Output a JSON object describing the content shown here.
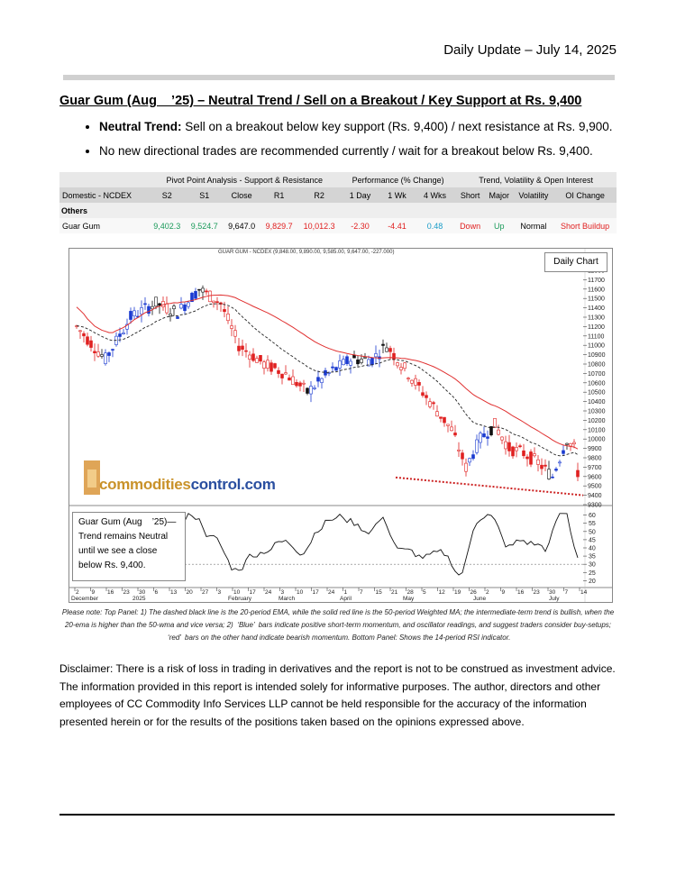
{
  "header": {
    "date_line": "Daily Update – July 14, 2025"
  },
  "title": "Guar Gum (Aug    ’25) – Neutral Trend / Sell on a Breakout / Key Support at Rs. 9,400",
  "bullets": [
    {
      "bold": "Neutral Trend:",
      "text": " Sell on a breakout below key support (Rs. 9,400) / next resistance at Rs. 9,900."
    },
    {
      "bold": "",
      "text": "No new directional trades are recommended currently / wait for a breakout below Rs. 9,400."
    }
  ],
  "table": {
    "groups": [
      "Pivot Point Analysis - Support & Resistance",
      "Performance (% Change)",
      "Trend, Volatility & Open Interest"
    ],
    "columns": [
      "Domestic - NCDEX",
      "S2",
      "S1",
      "Close",
      "R1",
      "R2",
      "1 Day",
      "1 Wk",
      "4 Wks",
      "Short",
      "Major",
      "Volatility",
      "OI Change"
    ],
    "section": "Others",
    "row": [
      "Guar Gum",
      "9,402.3",
      "9,524.7",
      "9,647.0",
      "9,829.7",
      "10,012.3",
      "-2.30",
      "-4.41",
      "0.48",
      "Down",
      "Up",
      "Normal",
      "Short Buildup"
    ]
  },
  "chart": {
    "title": "GUAR GUM - NCDEX (9,848.00, 9,890.00, 9,585.00, 9,647.00, -227.000)",
    "legend": "Daily Chart",
    "logo_part1": "commodities",
    "logo_part2": "control.com",
    "price_ticks": [
      "11800",
      "11700",
      "11600",
      "11500",
      "11400",
      "11300",
      "11200",
      "11100",
      "11000",
      "10900",
      "10800",
      "10700",
      "10600",
      "10500",
      "10400",
      "10300",
      "10200",
      "10100",
      "10000",
      "9900",
      "9800",
      "9700",
      "9600",
      "9500",
      "9400",
      "9300"
    ],
    "rsi_ticks": [
      "60",
      "55",
      "50",
      "45",
      "40",
      "35",
      "30",
      "25",
      "20"
    ],
    "month_labels": [
      "December",
      "2025",
      "February",
      "March",
      "April",
      "May",
      "June",
      "July"
    ],
    "day_labels": [
      "2",
      "9",
      "16",
      "23",
      "30",
      "6",
      "13",
      "20",
      "27",
      "3",
      "10",
      "17",
      "24",
      "3",
      "10",
      "17",
      "24",
      "1",
      "7",
      "15",
      "21",
      "28",
      "5",
      "12",
      "19",
      "26",
      "2",
      "9",
      "16",
      "23",
      "30",
      "7",
      "14"
    ],
    "colors": {
      "ema_dashed": "#222222",
      "wma_red": "#e03030",
      "bull_blue": "#1a3ad0",
      "bear_red": "#e02020",
      "neutral": "#111111",
      "support_line": "#cc2020"
    }
  },
  "panel_note": {
    "line1": "Guar Gum (Aug    ’25)—",
    "line2": "Trend remains Neutral",
    "line3": "until we see a close",
    "line4": "below Rs. 9,400."
  },
  "note": "Please note: Top Panel: 1) The dashed black line is the 20-period EMA, while the solid red line is the 50-period Weighted MA; the intermediate-term trend is bullish, when the 20-ema is higher than the 50-wma and vice versa; 2)  ‘Blue’  bars indicate positive short-term momentum, and oscillator readings, and suggest traders consider buy-setups;  ‘red’  bars on the other hand indicate bearish momentum. Bottom Panel: Shows the 14-period RSI indicator.",
  "disclaimer": "Disclaimer: There is a risk of loss in trading in derivatives and the report is not to be construed as investment advice. The information provided in this report is intended solely for informative purposes. The author, directors and other employees of CC Commodity Info Services LLP cannot be held responsible for the accuracy of the information presented herein or for the results of the positions taken based on the opinions expressed above."
}
